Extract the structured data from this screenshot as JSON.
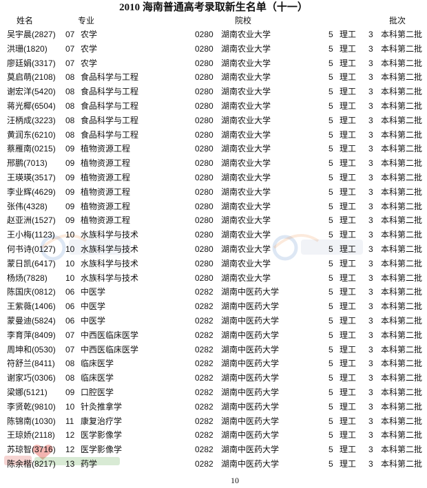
{
  "title": "2010 海南普通高考录取新生名单（十一）",
  "headers": {
    "name": "姓名",
    "major": "专业",
    "school": "院校",
    "batch": "批次"
  },
  "rows": [
    [
      "吴宇晨(2827)",
      "07",
      "农学",
      "0280",
      "湖南农业大学",
      "5",
      "理工",
      "3",
      "本科第二批"
    ],
    [
      "洪珊(1820)",
      "07",
      "农学",
      "0280",
      "湖南农业大学",
      "5",
      "理工",
      "3",
      "本科第二批"
    ],
    [
      "廖廷娟(3317)",
      "07",
      "农学",
      "0280",
      "湖南农业大学",
      "5",
      "理工",
      "3",
      "本科第二批"
    ],
    [
      "莫启萌(2108)",
      "08",
      "食品科学与工程",
      "0280",
      "湖南农业大学",
      "5",
      "理工",
      "3",
      "本科第二批"
    ],
    [
      "谢宏洋(5420)",
      "08",
      "食品科学与工程",
      "0280",
      "湖南农业大学",
      "5",
      "理工",
      "3",
      "本科第二批"
    ],
    [
      "蒋光椰(6504)",
      "08",
      "食品科学与工程",
      "0280",
      "湖南农业大学",
      "5",
      "理工",
      "3",
      "本科第二批"
    ],
    [
      "汪柄成(3223)",
      "08",
      "食品科学与工程",
      "0280",
      "湖南农业大学",
      "5",
      "理工",
      "3",
      "本科第二批"
    ],
    [
      "黄润东(6210)",
      "08",
      "食品科学与工程",
      "0280",
      "湖南农业大学",
      "5",
      "理工",
      "3",
      "本科第二批"
    ],
    [
      "蔡雁南(0215)",
      "09",
      "植物资源工程",
      "0280",
      "湖南农业大学",
      "5",
      "理工",
      "3",
      "本科第二批"
    ],
    [
      "邢鹏(7013)",
      "09",
      "植物资源工程",
      "0280",
      "湖南农业大学",
      "5",
      "理工",
      "3",
      "本科第二批"
    ],
    [
      "王瑛瑛(3517)",
      "09",
      "植物资源工程",
      "0280",
      "湖南农业大学",
      "5",
      "理工",
      "3",
      "本科第二批"
    ],
    [
      "李业辉(4629)",
      "09",
      "植物资源工程",
      "0280",
      "湖南农业大学",
      "5",
      "理工",
      "3",
      "本科第二批"
    ],
    [
      "张伟(4328)",
      "09",
      "植物资源工程",
      "0280",
      "湖南农业大学",
      "5",
      "理工",
      "3",
      "本科第二批"
    ],
    [
      "赵亚洲(1527)",
      "09",
      "植物资源工程",
      "0280",
      "湖南农业大学",
      "5",
      "理工",
      "3",
      "本科第二批"
    ],
    [
      "王小梅(1123)",
      "10",
      "水族科学与技术",
      "0280",
      "湖南农业大学",
      "5",
      "理工",
      "3",
      "本科第二批"
    ],
    [
      "何书诗(0127)",
      "10",
      "水族科学与技术",
      "0280",
      "湖南农业大学",
      "5",
      "理工",
      "3",
      "本科第二批"
    ],
    [
      "蒙日凯(6417)",
      "10",
      "水族科学与技术",
      "0280",
      "湖南农业大学",
      "5",
      "理工",
      "3",
      "本科第二批"
    ],
    [
      "杨炀(7828)",
      "10",
      "水族科学与技术",
      "0280",
      "湖南农业大学",
      "5",
      "理工",
      "3",
      "本科第二批"
    ],
    [
      "陈国庆(0812)",
      "06",
      "中医学",
      "0282",
      "湖南中医药大学",
      "5",
      "理工",
      "3",
      "本科第二批"
    ],
    [
      "王紫薇(1406)",
      "06",
      "中医学",
      "0282",
      "湖南中医药大学",
      "5",
      "理工",
      "3",
      "本科第二批"
    ],
    [
      "蒙曼迪(5824)",
      "06",
      "中医学",
      "0282",
      "湖南中医药大学",
      "5",
      "理工",
      "3",
      "本科第二批"
    ],
    [
      "李育萍(8409)",
      "07",
      "中西医临床医学",
      "0282",
      "湖南中医药大学",
      "5",
      "理工",
      "3",
      "本科第二批"
    ],
    [
      "周坤和(0530)",
      "07",
      "中西医临床医学",
      "0282",
      "湖南中医药大学",
      "5",
      "理工",
      "3",
      "本科第二批"
    ],
    [
      "符舒兰(8411)",
      "08",
      "临床医学",
      "0282",
      "湖南中医药大学",
      "5",
      "理工",
      "3",
      "本科第二批"
    ],
    [
      "谢家巧(0306)",
      "08",
      "临床医学",
      "0282",
      "湖南中医药大学",
      "5",
      "理工",
      "3",
      "本科第二批"
    ],
    [
      "梁娜(5121)",
      "09",
      "口腔医学",
      "0282",
      "湖南中医药大学",
      "5",
      "理工",
      "3",
      "本科第二批"
    ],
    [
      "李贤乾(9810)",
      "10",
      "针灸推拿学",
      "0282",
      "湖南中医药大学",
      "5",
      "理工",
      "3",
      "本科第二批"
    ],
    [
      "陈锦南(1030)",
      "11",
      "康复治疗学",
      "0282",
      "湖南中医药大学",
      "5",
      "理工",
      "3",
      "本科第二批"
    ],
    [
      "王琼娇(2118)",
      "12",
      "医学影像学",
      "0282",
      "湖南中医药大学",
      "5",
      "理工",
      "3",
      "本科第二批"
    ],
    [
      "苏琼智(3716)",
      "12",
      "医学影像学",
      "0282",
      "湖南中医药大学",
      "5",
      "理工",
      "3",
      "本科第二批"
    ],
    [
      "陈余楷(8217)",
      "13",
      "药学",
      "0282",
      "湖南中医药大学",
      "5",
      "理工",
      "3",
      "本科第二批"
    ]
  ],
  "page_number": "10",
  "watermarks": {
    "nanhai": "南海网",
    "nanhai_url": "hinews.cn",
    "site": "fjzsksw.com",
    "site_cn": "招生考试网"
  }
}
